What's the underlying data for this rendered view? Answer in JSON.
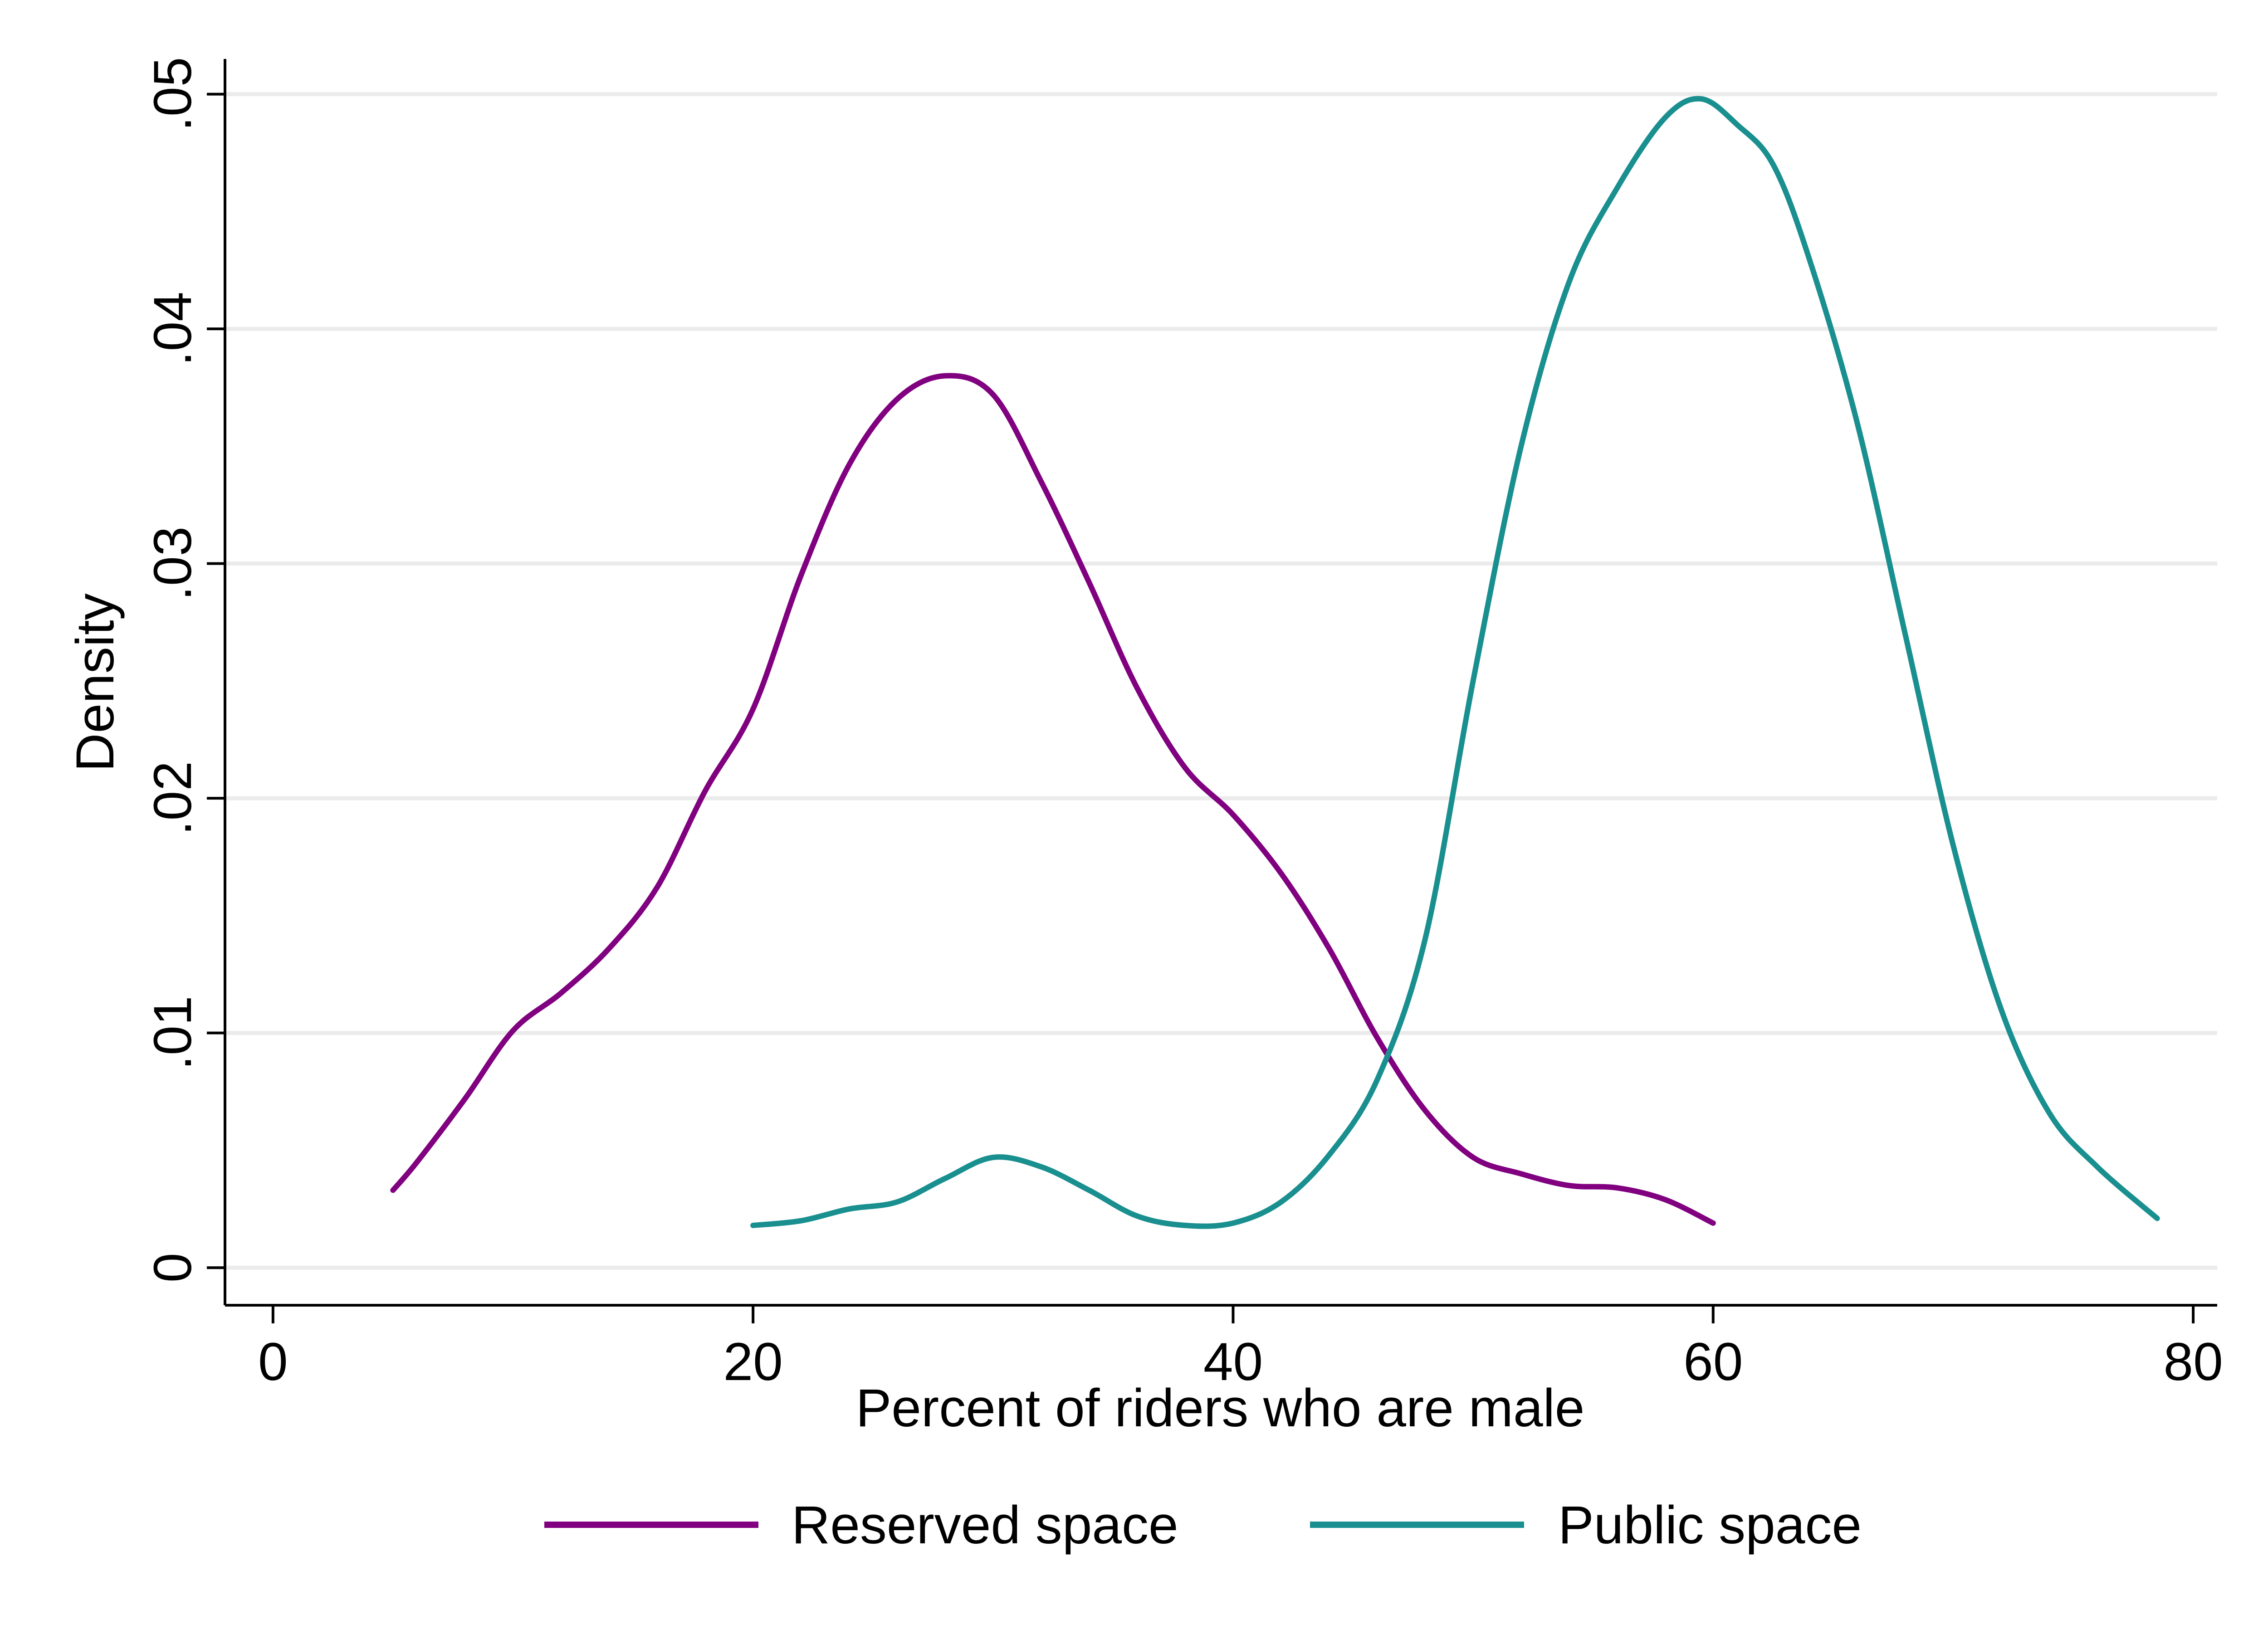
{
  "chart_data": {
    "type": "line",
    "title": "",
    "xlabel": "Percent of riders who are male",
    "ylabel": "Density",
    "xlim": [
      -2,
      81
    ],
    "ylim": [
      -0.0016,
      0.0515
    ],
    "xticks": [
      0,
      20,
      40,
      60,
      80
    ],
    "xtick_labels": [
      "0",
      "20",
      "40",
      "60",
      "80"
    ],
    "yticks": [
      0,
      0.01,
      0.02,
      0.03,
      0.04,
      0.05
    ],
    "ytick_labels": [
      "0",
      ".01",
      ".02",
      ".03",
      ".04",
      ".05"
    ],
    "grid": "horizontal",
    "legend_position": "bottom",
    "series": [
      {
        "name": "Reserved space",
        "color": "#800080",
        "x": [
          5,
          6,
          8,
          10,
          12,
          14,
          16,
          18,
          20,
          22,
          24,
          26,
          28,
          30,
          32,
          34,
          36,
          38,
          40,
          42,
          44,
          46,
          48,
          50,
          52,
          54,
          56,
          58,
          60
        ],
        "y": [
          0.0033,
          0.0045,
          0.0072,
          0.0101,
          0.0117,
          0.0136,
          0.0162,
          0.0203,
          0.0238,
          0.0295,
          0.0342,
          0.037,
          0.038,
          0.0372,
          0.0335,
          0.0292,
          0.0247,
          0.0213,
          0.0193,
          0.0168,
          0.0136,
          0.0098,
          0.0067,
          0.0047,
          0.004,
          0.0035,
          0.0034,
          0.0029,
          0.0019
        ]
      },
      {
        "name": "Public space",
        "color": "#1a8f8f",
        "x": [
          20,
          22,
          24,
          26,
          28,
          30,
          32,
          34,
          36,
          38,
          40,
          42,
          44,
          46,
          48,
          50,
          52,
          54,
          56,
          58,
          59.5,
          61,
          62.5,
          64,
          66,
          68,
          70,
          72,
          74,
          76,
          78.5
        ],
        "y": [
          0.0018,
          0.002,
          0.0025,
          0.0028,
          0.0038,
          0.0047,
          0.0043,
          0.0033,
          0.0022,
          0.0018,
          0.0019,
          0.0028,
          0.0048,
          0.008,
          0.014,
          0.025,
          0.035,
          0.042,
          0.046,
          0.049,
          0.0498,
          0.0487,
          0.047,
          0.043,
          0.036,
          0.027,
          0.018,
          0.011,
          0.0066,
          0.0043,
          0.0021
        ]
      }
    ]
  }
}
